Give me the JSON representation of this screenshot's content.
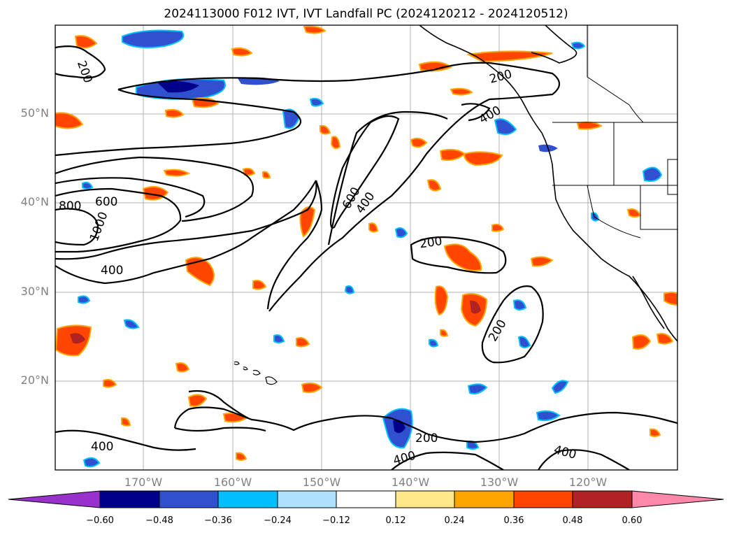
{
  "title": "2024113000 F012 IVT, IVT Landfall PC (2024120212 - 2024120512)",
  "lat_labels": [
    "50°N",
    "40°N",
    "30°N",
    "20°N"
  ],
  "lon_labels": [
    "170°W",
    "160°W",
    "150°W",
    "140°W",
    "130°W",
    "120°W"
  ],
  "contour_labels": [
    "200",
    "200",
    "400",
    "600",
    "400",
    "800",
    "600",
    "1000",
    "400",
    "200",
    "200",
    "400",
    "200",
    "400",
    "400"
  ],
  "colorbar": {
    "ticks": [
      "−0.60",
      "−0.48",
      "−0.36",
      "−0.24",
      "−0.12",
      "0.12",
      "0.24",
      "0.36",
      "0.48",
      "0.60"
    ],
    "colors": [
      "#9932cc",
      "#00008b",
      "#3050d0",
      "#00bfff",
      "#aee0ff",
      "#ffffff",
      "#ffe88a",
      "#ffa500",
      "#ff4500",
      "#b22222",
      "#ff88aa"
    ]
  }
}
